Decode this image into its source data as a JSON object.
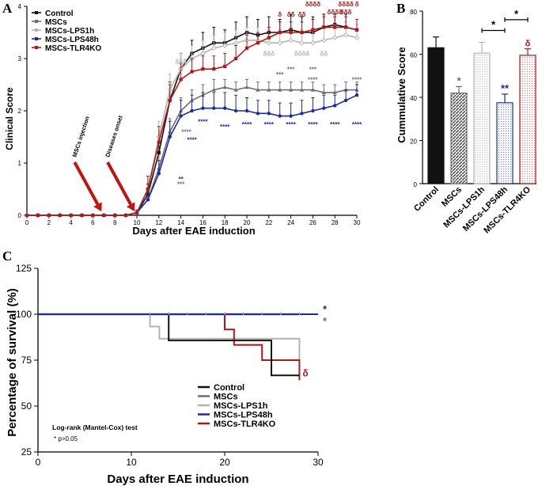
{
  "colors": {
    "control": "#111111",
    "mscs": "#6e6e6e",
    "lps1h": "#b4b4b4",
    "lps48h": "#1c2aa0",
    "tlr4ko": "#b01818",
    "arrow": "#c0140f"
  },
  "chart_data": [
    {
      "panel": "A",
      "type": "line",
      "xlabel": "Days after EAE induction",
      "ylabel": "Clinical Score",
      "xlim": [
        0,
        30
      ],
      "ylim": [
        0,
        4
      ],
      "xticks": [
        "0",
        "2",
        "4",
        "6",
        "8",
        "10",
        "12",
        "14",
        "16",
        "18",
        "20",
        "22",
        "24",
        "26",
        "28",
        "30"
      ],
      "yticks": [
        "0",
        "1",
        "2",
        "3",
        "4"
      ],
      "x": [
        0,
        1,
        2,
        3,
        4,
        5,
        6,
        7,
        8,
        9,
        10,
        11,
        12,
        13,
        14,
        15,
        16,
        17,
        18,
        19,
        20,
        21,
        22,
        23,
        24,
        25,
        26,
        27,
        28,
        29,
        30
      ],
      "series": [
        {
          "name": "Control",
          "key": "control",
          "values": [
            0,
            0,
            0,
            0,
            0,
            0,
            0,
            0,
            0,
            0,
            0.05,
            0.4,
            1.2,
            2.2,
            2.8,
            3.1,
            3.2,
            3.3,
            3.3,
            3.4,
            3.5,
            3.45,
            3.5,
            3.5,
            3.55,
            3.5,
            3.5,
            3.6,
            3.65,
            3.6,
            3.55
          ],
          "err": [
            0,
            0,
            0,
            0,
            0,
            0,
            0,
            0,
            0,
            0,
            0.05,
            0.2,
            0.3,
            0.35,
            0.3,
            0.25,
            0.3,
            0.3,
            0.25,
            0.3,
            0.3,
            0.3,
            0.3,
            0.25,
            0.3,
            0.3,
            0.3,
            0.25,
            0.2,
            0.25,
            0.2
          ]
        },
        {
          "name": "MSCs",
          "key": "mscs",
          "values": [
            0,
            0,
            0,
            0,
            0,
            0,
            0,
            0,
            0,
            0,
            0.05,
            0.3,
            0.9,
            1.6,
            2.0,
            2.2,
            2.3,
            2.4,
            2.45,
            2.4,
            2.45,
            2.4,
            2.4,
            2.4,
            2.4,
            2.4,
            2.4,
            2.35,
            2.35,
            2.4,
            2.4
          ],
          "err": [
            0,
            0,
            0,
            0,
            0,
            0,
            0,
            0,
            0,
            0,
            0.05,
            0.2,
            0.25,
            0.25,
            0.25,
            0.2,
            0.2,
            0.2,
            0.15,
            0.15,
            0.15,
            0.15,
            0.15,
            0.15,
            0.15,
            0.15,
            0.15,
            0.15,
            0.15,
            0.15,
            0.15
          ]
        },
        {
          "name": "MSCs-LPS1h",
          "key": "lps1h",
          "values": [
            0,
            0,
            0,
            0,
            0,
            0,
            0,
            0,
            0,
            0,
            0.05,
            0.5,
            1.5,
            2.4,
            2.8,
            3.0,
            3.1,
            3.2,
            3.25,
            3.3,
            3.35,
            3.35,
            3.3,
            3.3,
            3.35,
            3.3,
            3.3,
            3.35,
            3.4,
            3.45,
            3.4
          ],
          "err": [
            0,
            0,
            0,
            0,
            0,
            0,
            0,
            0,
            0,
            0,
            0.05,
            0.25,
            0.3,
            0.3,
            0.3,
            0.25,
            0.25,
            0.25,
            0.25,
            0.25,
            0.25,
            0.25,
            0.25,
            0.25,
            0.25,
            0.25,
            0.25,
            0.25,
            0.25,
            0.25,
            0.25
          ]
        },
        {
          "name": "MSCs-LPS48h",
          "key": "lps48h",
          "values": [
            0,
            0,
            0,
            0,
            0,
            0,
            0,
            0,
            0,
            0,
            0.05,
            0.3,
            0.8,
            1.5,
            1.9,
            2.0,
            2.05,
            2.05,
            2.05,
            2.0,
            2.0,
            1.95,
            1.95,
            1.9,
            1.9,
            1.95,
            2.0,
            2.05,
            2.1,
            2.2,
            2.3
          ],
          "err": [
            0,
            0,
            0,
            0,
            0,
            0,
            0,
            0,
            0,
            0,
            0.05,
            0.2,
            0.25,
            0.3,
            0.3,
            0.3,
            0.3,
            0.3,
            0.3,
            0.3,
            0.25,
            0.25,
            0.25,
            0.25,
            0.25,
            0.25,
            0.25,
            0.25,
            0.2,
            0.2,
            0.2
          ]
        },
        {
          "name": "MSCs-TLR4KO",
          "key": "tlr4ko",
          "values": [
            0,
            0,
            0,
            0,
            0,
            0,
            0,
            0,
            0,
            0,
            0.05,
            0.5,
            1.4,
            2.2,
            2.6,
            2.75,
            2.8,
            2.8,
            2.85,
            3.0,
            3.2,
            3.3,
            3.4,
            3.5,
            3.5,
            3.5,
            3.55,
            3.6,
            3.6,
            3.6,
            3.55
          ],
          "err": [
            0,
            0,
            0,
            0,
            0,
            0,
            0,
            0,
            0,
            0,
            0.05,
            0.25,
            0.3,
            0.3,
            0.3,
            0.25,
            0.25,
            0.25,
            0.25,
            0.25,
            0.25,
            0.2,
            0.2,
            0.2,
            0.2,
            0.2,
            0.2,
            0.2,
            0.2,
            0.2,
            0.2
          ]
        }
      ],
      "arrows": [
        {
          "label": "MSCs injection",
          "x": 7
        },
        {
          "label": "Diseases onset",
          "x": 10
        }
      ],
      "annotations": [
        {
          "text": "δ",
          "x": 23,
          "y": 3.8,
          "key": "tlr4ko"
        },
        {
          "text": "δδ",
          "x": 24,
          "y": 3.8,
          "key": "tlr4ko"
        },
        {
          "text": "δδ",
          "x": 25,
          "y": 3.8,
          "key": "tlr4ko"
        },
        {
          "text": "δδδδ",
          "x": 26,
          "y": 4.0,
          "key": "tlr4ko"
        },
        {
          "text": "δδδδ",
          "x": 28,
          "y": 3.85,
          "key": "tlr4ko"
        },
        {
          "text": "δδδδ",
          "x": 29,
          "y": 4.0,
          "key": "tlr4ko"
        },
        {
          "text": "δδδ",
          "x": 29,
          "y": 3.85,
          "key": "tlr4ko"
        },
        {
          "text": "δ",
          "x": 30,
          "y": 4.0,
          "key": "tlr4ko"
        },
        {
          "text": "δδδ",
          "x": 14,
          "y": 2.9,
          "key": "lps1h"
        },
        {
          "text": "δδδ",
          "x": 22,
          "y": 3.05,
          "key": "lps1h"
        },
        {
          "text": "δδδδ",
          "x": 25,
          "y": 3.05,
          "key": "lps1h"
        },
        {
          "text": "δδ",
          "x": 27,
          "y": 3.05,
          "key": "lps1h"
        },
        {
          "text": "***",
          "x": 23,
          "y": 2.65,
          "key": "mscs"
        },
        {
          "text": "***",
          "x": 24,
          "y": 2.75,
          "key": "mscs"
        },
        {
          "text": "***",
          "x": 26,
          "y": 2.75,
          "key": "mscs"
        },
        {
          "text": "****",
          "x": 26,
          "y": 2.55,
          "key": "mscs"
        },
        {
          "text": "****",
          "x": 30,
          "y": 2.55,
          "key": "mscs"
        },
        {
          "text": "****",
          "x": 14.5,
          "y": 1.55,
          "key": "mscs"
        },
        {
          "text": "***",
          "x": 14,
          "y": 0.55,
          "key": "mscs"
        },
        {
          "text": "****",
          "x": 18,
          "y": 1.65,
          "key": "lps48h"
        },
        {
          "text": "****",
          "x": 20,
          "y": 1.7,
          "key": "lps48h"
        },
        {
          "text": "****",
          "x": 22,
          "y": 1.7,
          "key": "lps48h"
        },
        {
          "text": "****",
          "x": 24,
          "y": 1.7,
          "key": "lps48h"
        },
        {
          "text": "****",
          "x": 26,
          "y": 1.7,
          "key": "lps48h"
        },
        {
          "text": "****",
          "x": 28,
          "y": 1.7,
          "key": "lps48h"
        },
        {
          "text": "****",
          "x": 30,
          "y": 1.7,
          "key": "lps48h"
        },
        {
          "text": "****",
          "x": 16,
          "y": 1.75,
          "key": "lps48h"
        },
        {
          "text": "****",
          "x": 15,
          "y": 1.4,
          "key": "lps48h"
        },
        {
          "text": "**",
          "x": 14,
          "y": 0.65,
          "key": "lps48h"
        }
      ]
    },
    {
      "panel": "B",
      "type": "bar",
      "ylabel": "Cummulative Score",
      "ylim": [
        0,
        80
      ],
      "yticks": [
        "0",
        "20",
        "40",
        "60",
        "80"
      ],
      "categories": [
        "Control",
        "MSCs",
        "MSCs-LPS1h",
        "MSCs-LPS48h",
        "MSCs-TLR4KO"
      ],
      "keys": [
        "control",
        "mscs",
        "lps1h",
        "lps48h",
        "tlr4ko"
      ],
      "values": [
        63,
        42,
        60.5,
        37.5,
        59.5
      ],
      "err": [
        5,
        3,
        5,
        4,
        3
      ],
      "sig": [
        {
          "text": "",
          "key": "control"
        },
        {
          "text": "*",
          "key": "mscs"
        },
        {
          "text": "",
          "key": "lps1h"
        },
        {
          "text": "**",
          "key": "lps48h"
        },
        {
          "text": "δ",
          "key": "tlr4ko"
        }
      ],
      "brackets": [
        {
          "from": 2,
          "to": 3,
          "y": 71,
          "text": "*"
        },
        {
          "from": 3,
          "to": 4,
          "y": 76,
          "text": "*"
        }
      ]
    },
    {
      "panel": "C",
      "type": "line",
      "xlabel": "Days after EAE induction",
      "ylabel": "Percentage of survival (%)",
      "xlim": [
        0,
        30
      ],
      "ylim": [
        25,
        125
      ],
      "xticks": [
        "0",
        "10",
        "20",
        "30"
      ],
      "yticks": [
        "25",
        "50",
        "75",
        "100",
        "125"
      ],
      "series": [
        {
          "name": "Control",
          "key": "control",
          "steps": [
            [
              0,
              100
            ],
            [
              14,
              100
            ],
            [
              14,
              85.7
            ],
            [
              25,
              85.7
            ],
            [
              25,
              66.7
            ],
            [
              28,
              66.7
            ]
          ],
          "end": 28
        },
        {
          "name": "MSCs",
          "key": "mscs",
          "steps": [
            [
              0,
              100
            ],
            [
              28,
              100
            ]
          ],
          "end": 28
        },
        {
          "name": "MSCs-LPS1h",
          "key": "lps1h",
          "steps": [
            [
              0,
              100
            ],
            [
              12,
              100
            ],
            [
              12,
              93.3
            ],
            [
              13,
              93.3
            ],
            [
              13,
              86.7
            ],
            [
              28,
              86.7
            ],
            [
              28,
              75
            ]
          ],
          "end": 28
        },
        {
          "name": "MSCs-LPS48h",
          "key": "lps48h",
          "steps": [
            [
              0,
              100
            ],
            [
              30,
              100
            ]
          ],
          "end": 30
        },
        {
          "name": "MSCs-TLR4KO",
          "key": "tlr4ko",
          "steps": [
            [
              0,
              100
            ],
            [
              20,
              100
            ],
            [
              20,
              91.7
            ],
            [
              21,
              91.7
            ],
            [
              21,
              83.3
            ],
            [
              24,
              83.3
            ],
            [
              24,
              75
            ],
            [
              28,
              75
            ],
            [
              28,
              64
            ]
          ],
          "end": 28
        }
      ],
      "annotations": [
        {
          "text": "*",
          "key": "lps48h"
        },
        {
          "text": "*",
          "key": "mscs"
        },
        {
          "text": "δ",
          "key": "tlr4ko"
        }
      ],
      "test_note": "Log-rank (Mantel-Cox) test",
      "p_note": "* p>0.05"
    }
  ]
}
